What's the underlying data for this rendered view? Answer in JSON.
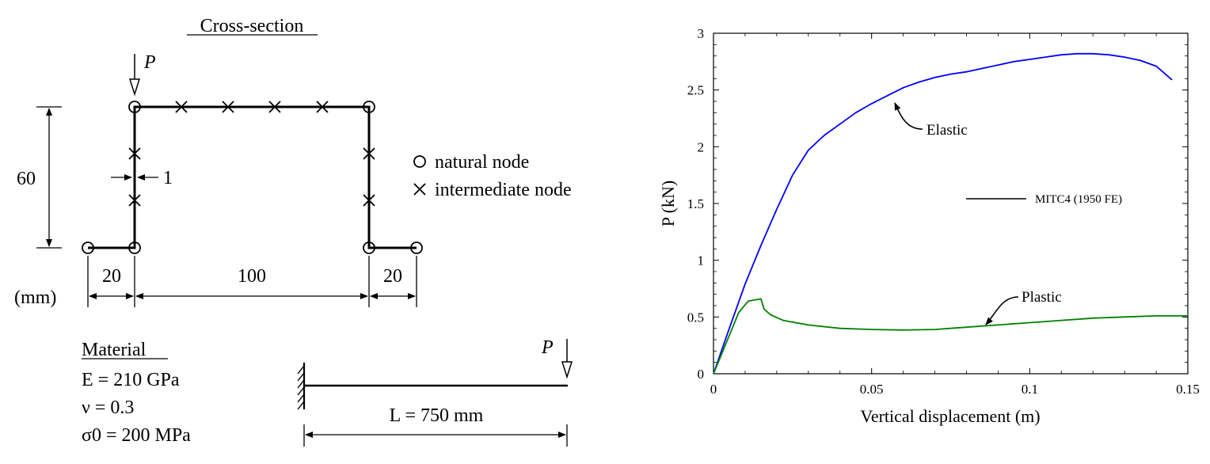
{
  "cross_section": {
    "title": "Cross-section",
    "load_label": "P",
    "height_dim": "60",
    "thickness_dim": "1",
    "width_dims": [
      "20",
      "100",
      "20"
    ],
    "unit_label": "(mm)",
    "legend": {
      "natural": "natural node",
      "intermediate": "intermediate node"
    }
  },
  "material": {
    "title": "Material",
    "lines": [
      "E = 210 GPa",
      "ν = 0.3",
      "σ0 = 200 MPa"
    ]
  },
  "beam": {
    "load_label": "P",
    "length_label": "L = 750 mm"
  },
  "chart_data": {
    "type": "line",
    "title": "",
    "xlabel": "Vertical displacement (m)",
    "ylabel": "P (kN)",
    "xlim": [
      0,
      0.15
    ],
    "ylim": [
      0,
      3
    ],
    "xticks": [
      "0",
      "0.05",
      "0.1",
      "0.15"
    ],
    "yticks": [
      "0",
      "0.5",
      "1",
      "1.5",
      "2",
      "2.5",
      "3"
    ],
    "legend": [
      "MITC4 (1950 FE)"
    ],
    "legend_placement": "center-right",
    "grid": false,
    "series": [
      {
        "name": "Elastic",
        "color": "#0000ff",
        "x": [
          0,
          0.005,
          0.01,
          0.015,
          0.02,
          0.025,
          0.03,
          0.035,
          0.04,
          0.045,
          0.05,
          0.055,
          0.06,
          0.065,
          0.07,
          0.075,
          0.08,
          0.085,
          0.09,
          0.095,
          0.1,
          0.105,
          0.11,
          0.115,
          0.12,
          0.125,
          0.13,
          0.135,
          0.14,
          0.145
        ],
        "y": [
          0,
          0.4,
          0.79,
          1.13,
          1.45,
          1.75,
          1.97,
          2.1,
          2.2,
          2.3,
          2.38,
          2.45,
          2.52,
          2.57,
          2.61,
          2.64,
          2.66,
          2.69,
          2.72,
          2.75,
          2.77,
          2.79,
          2.81,
          2.82,
          2.82,
          2.81,
          2.79,
          2.76,
          2.71,
          2.59
        ]
      },
      {
        "name": "Plastic",
        "color": "#008000",
        "x": [
          0,
          0.004,
          0.008,
          0.011,
          0.015,
          0.016,
          0.018,
          0.022,
          0.03,
          0.04,
          0.05,
          0.06,
          0.07,
          0.08,
          0.09,
          0.1,
          0.11,
          0.12,
          0.13,
          0.14,
          0.15
        ],
        "y": [
          0,
          0.27,
          0.54,
          0.64,
          0.66,
          0.57,
          0.52,
          0.47,
          0.43,
          0.4,
          0.39,
          0.385,
          0.39,
          0.41,
          0.43,
          0.45,
          0.47,
          0.49,
          0.5,
          0.51,
          0.51
        ]
      }
    ],
    "annotations": [
      "Elastic",
      "Plastic"
    ]
  }
}
